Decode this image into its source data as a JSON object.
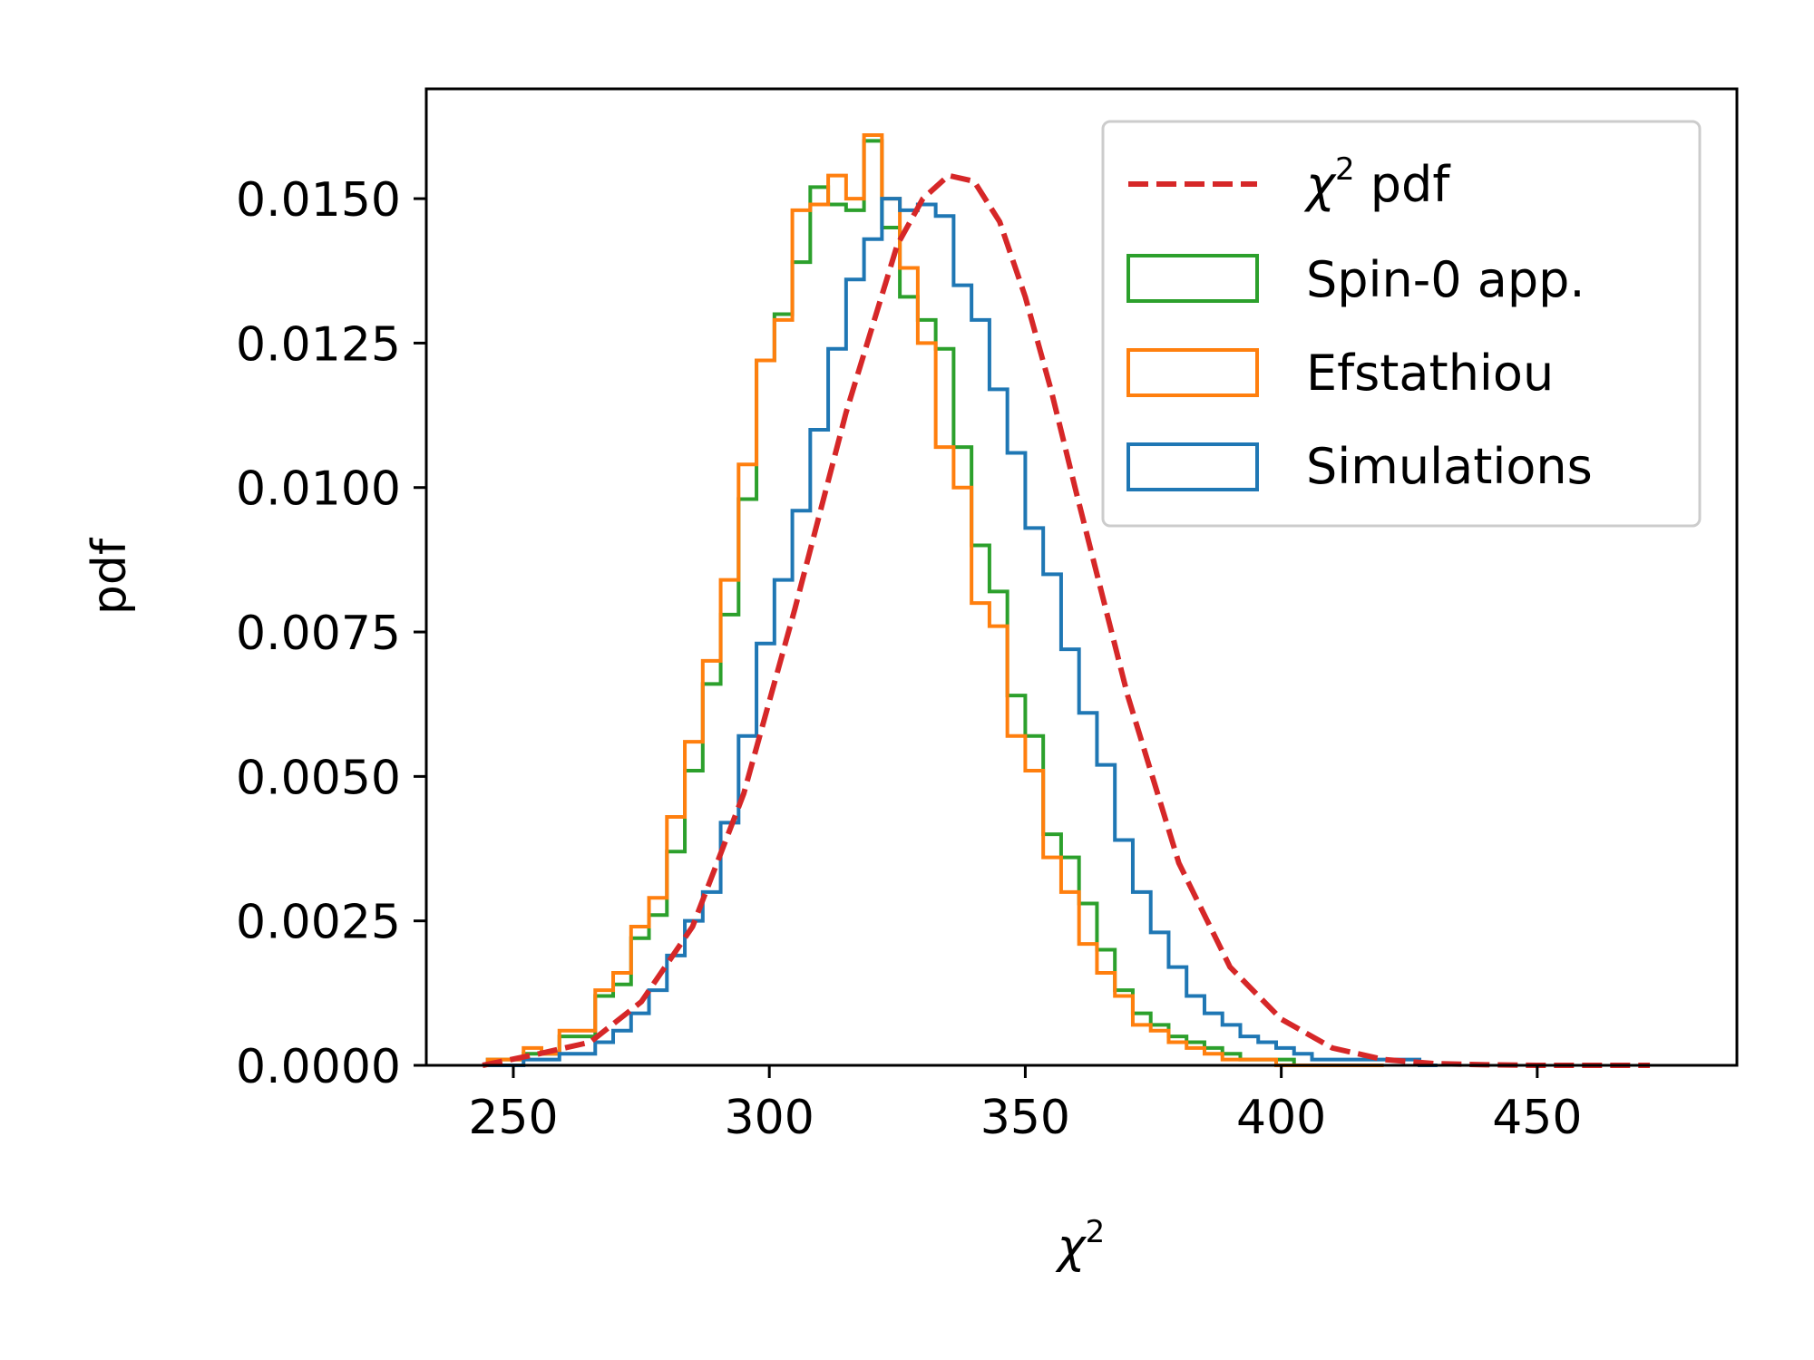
{
  "chart_data": {
    "type": "histogram",
    "xlabel": "χ",
    "xlabel_sup": "2",
    "ylabel": "pdf",
    "xlim": [
      233,
      489
    ],
    "ylim": [
      0,
      0.0169
    ],
    "xticks": [
      250,
      300,
      350,
      400,
      450
    ],
    "xtick_labels": [
      "250",
      "300",
      "350",
      "400",
      "450"
    ],
    "yticks": [
      0,
      0.0025,
      0.005,
      0.0075,
      0.01,
      0.0125,
      0.015
    ],
    "ytick_labels": [
      "0.0000",
      "0.0025",
      "0.0050",
      "0.0075",
      "0.0100",
      "0.0125",
      "0.0150"
    ],
    "grid": false,
    "legend_position": "upper right",
    "legend": [
      {
        "key": "chi2",
        "text": "χ",
        "sup": "2",
        "suffix": " pdf"
      },
      {
        "key": "spin0",
        "text": "Spin-0 app."
      },
      {
        "key": "efstathiou",
        "text": "Efstathiou"
      },
      {
        "key": "sims",
        "text": "Simulations"
      }
    ],
    "colors": {
      "chi2": "#d62728",
      "spin0": "#2ca02c",
      "efstathiou": "#ff7f0e",
      "sims": "#1f77b4"
    },
    "chi2_pdf": {
      "name": "χ² pdf",
      "x": [
        244,
        255,
        265,
        275,
        285,
        295,
        305,
        315,
        325,
        330,
        335,
        340,
        345,
        350,
        355,
        360,
        370,
        380,
        390,
        400,
        410,
        420,
        430,
        440,
        450,
        460,
        472
      ],
      "y": [
        0.0,
        0.0002,
        0.0004,
        0.0011,
        0.0024,
        0.0047,
        0.0079,
        0.0113,
        0.0142,
        0.015,
        0.0154,
        0.0153,
        0.0146,
        0.0133,
        0.0117,
        0.0099,
        0.0064,
        0.0035,
        0.0017,
        0.0008,
        0.0003,
        0.0001,
        3e-05,
        1e-05,
        0.0,
        0.0,
        0.0
      ]
    },
    "series": [
      {
        "name": "Spin-0 app.",
        "key": "spin0",
        "bin_edges": [
          245,
          248.5,
          252,
          255.5,
          259,
          262.5,
          266,
          269.5,
          273,
          276.5,
          280,
          283.5,
          287,
          290.5,
          294,
          297.5,
          301,
          304.5,
          308,
          311.5,
          315,
          318.5,
          322,
          325.5,
          329,
          332.5,
          336,
          339.5,
          343,
          346.5,
          350,
          353.5,
          357,
          360.5,
          364,
          367.5,
          371,
          374.5,
          378,
          381.5,
          385,
          388.5,
          392,
          395.5,
          399,
          402.5,
          406,
          409.5,
          413,
          416.5,
          420
        ],
        "values": [
          0.0001,
          0.0001,
          0.0002,
          0.0002,
          0.0005,
          0.0005,
          0.0012,
          0.0014,
          0.0022,
          0.0026,
          0.0037,
          0.0051,
          0.0066,
          0.0078,
          0.0098,
          0.0122,
          0.013,
          0.0139,
          0.0152,
          0.0149,
          0.0148,
          0.016,
          0.0145,
          0.0133,
          0.0129,
          0.0124,
          0.0107,
          0.009,
          0.0082,
          0.0064,
          0.0057,
          0.004,
          0.0036,
          0.0028,
          0.002,
          0.0013,
          0.0009,
          0.0007,
          0.0005,
          0.0004,
          0.0003,
          0.0002,
          0.0001,
          0.0001,
          0.0001,
          0.0,
          0.0,
          0.0,
          0.0,
          0.0
        ]
      },
      {
        "name": "Efstathiou",
        "key": "efstathiou",
        "bin_edges": [
          245,
          248.5,
          252,
          255.5,
          259,
          262.5,
          266,
          269.5,
          273,
          276.5,
          280,
          283.5,
          287,
          290.5,
          294,
          297.5,
          301,
          304.5,
          308,
          311.5,
          315,
          318.5,
          322,
          325.5,
          329,
          332.5,
          336,
          339.5,
          343,
          346.5,
          350,
          353.5,
          357,
          360.5,
          364,
          367.5,
          371,
          374.5,
          378,
          381.5,
          385,
          388.5,
          392,
          395.5,
          399,
          402.5,
          406,
          409.5,
          413,
          416.5,
          420
        ],
        "values": [
          0.0001,
          0.0001,
          0.0003,
          0.0002,
          0.0006,
          0.0006,
          0.0013,
          0.0016,
          0.0024,
          0.0029,
          0.0043,
          0.0056,
          0.007,
          0.0084,
          0.0104,
          0.0122,
          0.0129,
          0.0148,
          0.0149,
          0.0154,
          0.015,
          0.0161,
          0.015,
          0.0138,
          0.0125,
          0.0107,
          0.01,
          0.008,
          0.0076,
          0.0057,
          0.0051,
          0.0036,
          0.003,
          0.0021,
          0.0016,
          0.0012,
          0.0007,
          0.0006,
          0.0004,
          0.0003,
          0.0002,
          0.0001,
          0.0001,
          0.0001,
          0.0,
          0.0,
          0.0,
          0.0,
          0.0,
          0.0
        ]
      },
      {
        "name": "Simulations",
        "key": "sims",
        "bin_edges": [
          245,
          248.5,
          252,
          255.5,
          259,
          262.5,
          266,
          269.5,
          273,
          276.5,
          280,
          283.5,
          287,
          290.5,
          294,
          297.5,
          301,
          304.5,
          308,
          311.5,
          315,
          318.5,
          322,
          325.5,
          329,
          332.5,
          336,
          339.5,
          343,
          346.5,
          350,
          353.5,
          357,
          360.5,
          364,
          367.5,
          371,
          374.5,
          378,
          381.5,
          385,
          388.5,
          392,
          395.5,
          399,
          402.5,
          406,
          409.5,
          413,
          416.5,
          420,
          423.5,
          427,
          430.5
        ],
        "values": [
          0.0,
          0.0,
          0.0001,
          0.0001,
          0.0002,
          0.0002,
          0.0004,
          0.0006,
          0.0009,
          0.0013,
          0.0019,
          0.0025,
          0.003,
          0.0042,
          0.0057,
          0.0073,
          0.0084,
          0.0096,
          0.011,
          0.0124,
          0.0136,
          0.0143,
          0.015,
          0.0148,
          0.0149,
          0.0147,
          0.0135,
          0.0129,
          0.0117,
          0.0106,
          0.0093,
          0.0085,
          0.0072,
          0.0061,
          0.0052,
          0.0039,
          0.003,
          0.0023,
          0.0017,
          0.0012,
          0.0009,
          0.0007,
          0.0005,
          0.0004,
          0.0003,
          0.0002,
          0.0001,
          0.0001,
          0.0001,
          0.0001,
          0.0001,
          0.0001,
          0.0
        ]
      }
    ]
  }
}
